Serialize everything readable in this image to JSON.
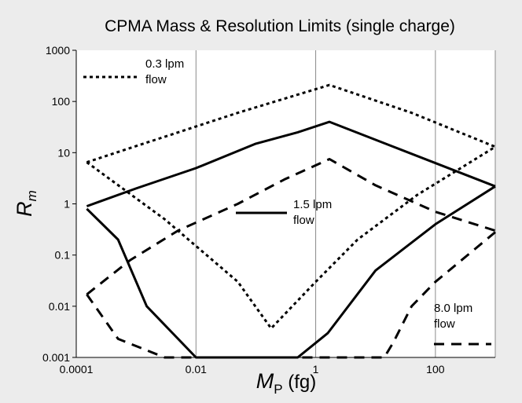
{
  "chart_data": {
    "type": "line",
    "title": "CPMA Mass & Resolution Limits (single charge)",
    "xlabel": {
      "main": "M",
      "sub": "P",
      "rest": " (fg)"
    },
    "ylabel": {
      "main": "R",
      "sub": "m"
    },
    "x_scale": "log",
    "y_scale": "log",
    "xlim": [
      0.0001,
      1000
    ],
    "ylim": [
      0.001,
      1000
    ],
    "x_ticks": [
      {
        "value": 0.0001,
        "label": "0.0001"
      },
      {
        "value": 0.01,
        "label": "0.01"
      },
      {
        "value": 1,
        "label": "1"
      },
      {
        "value": 100,
        "label": "100"
      }
    ],
    "y_ticks": [
      {
        "value": 0.001,
        "label": "0.001"
      },
      {
        "value": 0.01,
        "label": "0.01"
      },
      {
        "value": 0.1,
        "label": "0.1"
      },
      {
        "value": 1,
        "label": "1"
      },
      {
        "value": 10,
        "label": "10"
      },
      {
        "value": 100,
        "label": "100"
      },
      {
        "value": 1000,
        "label": "1000"
      }
    ],
    "grid": {
      "vertical": true,
      "horizontal": false
    },
    "series": [
      {
        "key": "f03",
        "name_lines": [
          "0.3 lpm",
          "flow"
        ],
        "dash": "dotted",
        "segments": [
          [
            [
              0.00015,
              6.5
            ],
            [
              0.05,
              60
            ],
            [
              1.7,
              210
            ],
            [
              40,
              60
            ],
            [
              1000,
              13
            ]
          ],
          [
            [
              0.00015,
              6.5
            ],
            [
              0.003,
              0.5
            ],
            [
              0.05,
              0.03
            ],
            [
              0.18,
              0.0037
            ],
            [
              1,
              0.03
            ],
            [
              5,
              0.2
            ],
            [
              50,
              1.5
            ],
            [
              1000,
              13
            ]
          ]
        ]
      },
      {
        "key": "f15",
        "name_lines": [
          "1.5 lpm",
          "flow"
        ],
        "dash": "solid",
        "segments": [
          [
            [
              0.00015,
              0.9
            ],
            [
              0.001,
              2
            ],
            [
              0.01,
              5
            ],
            [
              0.1,
              15
            ],
            [
              0.5,
              25
            ],
            [
              1.7,
              40
            ],
            [
              20,
              13
            ],
            [
              1000,
              2.2
            ]
          ],
          [
            [
              0.00015,
              0.8
            ],
            [
              0.0005,
              0.2
            ],
            [
              0.0015,
              0.01
            ],
            [
              0.01,
              0.001
            ],
            [
              0.5,
              0.001
            ],
            [
              1.6,
              0.003
            ],
            [
              10,
              0.05
            ],
            [
              100,
              0.4
            ],
            [
              1000,
              2.2
            ]
          ]
        ]
      },
      {
        "key": "f80",
        "name_lines": [
          "8.0 lpm",
          "flow"
        ],
        "dash": "dashed",
        "segments": [
          [
            [
              0.00015,
              0.017
            ],
            [
              0.0008,
              0.08
            ],
            [
              0.005,
              0.3
            ],
            [
              0.05,
              1.0
            ],
            [
              0.3,
              3
            ],
            [
              1.7,
              7.5
            ],
            [
              10,
              2.3
            ],
            [
              100,
              0.7
            ],
            [
              1000,
              0.3
            ]
          ],
          [
            [
              0.00015,
              0.017
            ],
            [
              0.0005,
              0.0023
            ],
            [
              0.003,
              0.001
            ],
            [
              1,
              0.001
            ],
            [
              14,
              0.001
            ],
            [
              20,
              0.002
            ],
            [
              40,
              0.01
            ],
            [
              100,
              0.03
            ],
            [
              1000,
              0.28
            ]
          ]
        ]
      }
    ]
  }
}
